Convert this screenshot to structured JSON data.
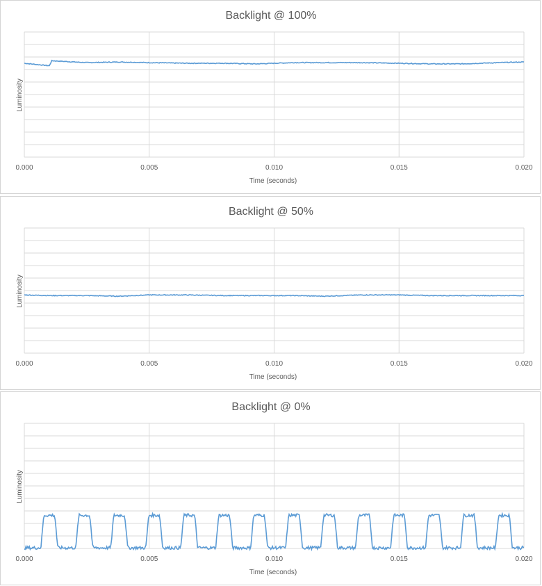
{
  "chart_data": [
    {
      "type": "line",
      "title": "Backlight @ 100%",
      "xlabel": "Time (seconds)",
      "ylabel": "Luminosity",
      "xlim": [
        0.0,
        0.02
      ],
      "x_ticks": [
        "0.000",
        "0.005",
        "0.010",
        "0.015",
        "0.020"
      ],
      "grid": true,
      "series": [
        {
          "color": "#5b9bd5",
          "x": [
            0.0,
            0.001,
            0.0011,
            0.0025,
            0.0038,
            0.005,
            0.0065,
            0.008,
            0.0093,
            0.01,
            0.0108,
            0.012,
            0.0135,
            0.015,
            0.0163,
            0.0175,
            0.019,
            0.02
          ],
          "y": [
            0.75,
            0.73,
            0.77,
            0.755,
            0.76,
            0.755,
            0.75,
            0.75,
            0.745,
            0.75,
            0.755,
            0.755,
            0.755,
            0.75,
            0.745,
            0.745,
            0.755,
            0.76
          ]
        }
      ]
    },
    {
      "type": "line",
      "title": "Backlight @ 50%",
      "xlabel": "Time (seconds)",
      "ylabel": "Luminosity",
      "xlim": [
        0.0,
        0.02
      ],
      "x_ticks": [
        "0.000",
        "0.005",
        "0.010",
        "0.015",
        "0.020"
      ],
      "grid": true,
      "series": [
        {
          "color": "#5b9bd5",
          "x": [
            0.0,
            0.001,
            0.0025,
            0.0038,
            0.005,
            0.0065,
            0.008,
            0.0093,
            0.01,
            0.0108,
            0.012,
            0.0135,
            0.015,
            0.0163,
            0.0175,
            0.019,
            0.02
          ],
          "y": [
            0.465,
            0.46,
            0.46,
            0.455,
            0.465,
            0.465,
            0.46,
            0.46,
            0.46,
            0.46,
            0.455,
            0.465,
            0.465,
            0.46,
            0.46,
            0.46,
            0.46
          ]
        }
      ]
    },
    {
      "type": "line",
      "title": "Backlight @ 0%",
      "xlabel": "Time (seconds)",
      "ylabel": "Luminosity",
      "xlim": [
        0.0,
        0.02
      ],
      "x_ticks": [
        "0.000",
        "0.005",
        "0.010",
        "0.015",
        "0.020"
      ],
      "grid": true,
      "series": [
        {
          "color": "#5b9bd5",
          "waveform": "pulse",
          "period": 0.0014,
          "first_peak_center": 0.001,
          "pulse_count": 14,
          "pulse_width": 0.0007,
          "peak": 0.265,
          "baseline": 0.005
        }
      ]
    }
  ]
}
